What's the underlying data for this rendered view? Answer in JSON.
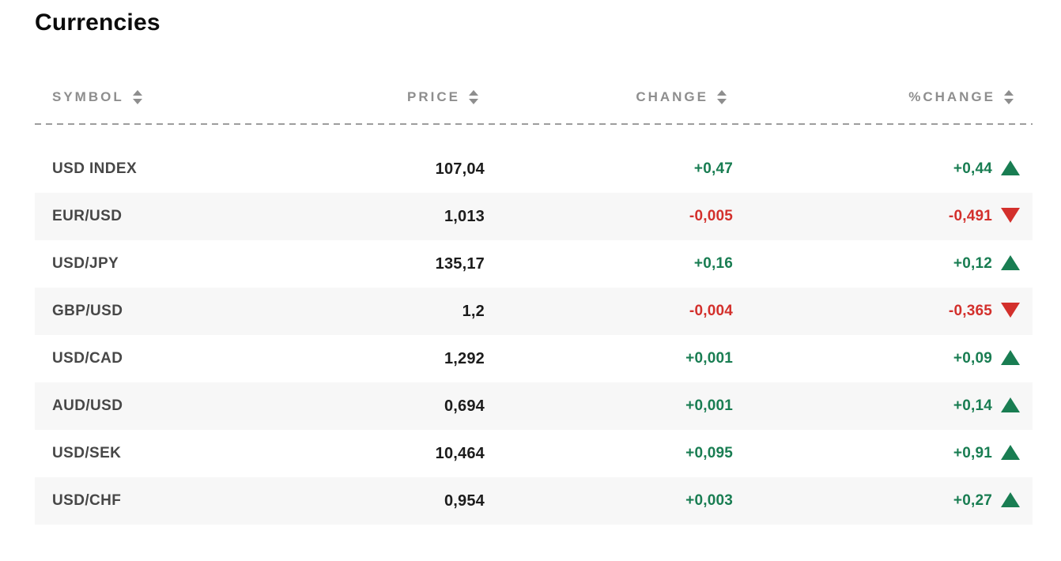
{
  "page": {
    "title": "Currencies"
  },
  "colors": {
    "positive": "#197d52",
    "negative": "#d3302c",
    "header_text": "#8e8e8e",
    "symbol_text": "#474747",
    "price_text": "#1c1c1c",
    "row_alt_bg": "#f7f7f7",
    "divider": "#9d9d9d"
  },
  "icons": {
    "column_sort": "up-down-sort-arrows",
    "trend_up": "filled-triangle-up",
    "trend_down": "filled-triangle-down"
  },
  "table": {
    "columns": [
      {
        "id": "symbol",
        "label": "SYMBOL",
        "sortable": true
      },
      {
        "id": "price",
        "label": "PRICE",
        "sortable": true
      },
      {
        "id": "change",
        "label": "CHANGE",
        "sortable": true
      },
      {
        "id": "pct_change",
        "label": "%CHANGE",
        "sortable": true
      }
    ],
    "rows": [
      {
        "symbol": "USD INDEX",
        "price": "107,04",
        "change": "+0,47",
        "pct_change": "+0,44",
        "trend": "up"
      },
      {
        "symbol": "EUR/USD",
        "price": "1,013",
        "change": "-0,005",
        "pct_change": "-0,491",
        "trend": "down"
      },
      {
        "symbol": "USD/JPY",
        "price": "135,17",
        "change": "+0,16",
        "pct_change": "+0,12",
        "trend": "up"
      },
      {
        "symbol": "GBP/USD",
        "price": "1,2",
        "change": "-0,004",
        "pct_change": "-0,365",
        "trend": "down"
      },
      {
        "symbol": "USD/CAD",
        "price": "1,292",
        "change": "+0,001",
        "pct_change": "+0,09",
        "trend": "up"
      },
      {
        "symbol": "AUD/USD",
        "price": "0,694",
        "change": "+0,001",
        "pct_change": "+0,14",
        "trend": "up"
      },
      {
        "symbol": "USD/SEK",
        "price": "10,464",
        "change": "+0,095",
        "pct_change": "+0,91",
        "trend": "up"
      },
      {
        "symbol": "USD/CHF",
        "price": "0,954",
        "change": "+0,003",
        "pct_change": "+0,27",
        "trend": "up"
      }
    ]
  }
}
